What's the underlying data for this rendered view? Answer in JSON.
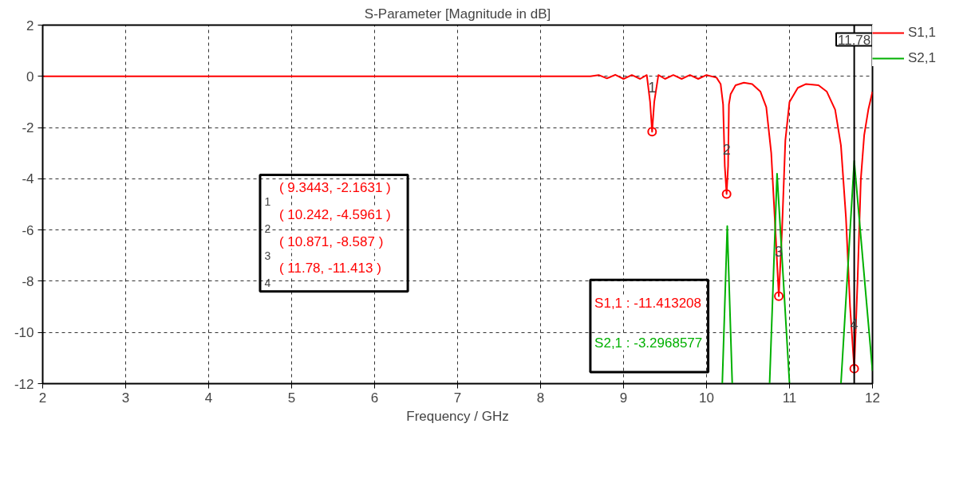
{
  "chart_data": {
    "type": "line",
    "title": "S-Parameter [Magnitude in dB]",
    "xlabel": "Frequency / GHz",
    "xlim": [
      2,
      12
    ],
    "ylim": [
      -12,
      2
    ],
    "xticks": [
      2,
      3,
      4,
      5,
      6,
      7,
      8,
      9,
      10,
      11,
      12
    ],
    "yticks": [
      2,
      0,
      -2,
      -4,
      -6,
      -8,
      -10,
      -12
    ],
    "grid": true,
    "legend": "right",
    "line_style": "solid",
    "marker": "none",
    "series": [
      {
        "name": "S1,1",
        "color": "#ff0000",
        "x": [
          2,
          8.6,
          8.7,
          8.8,
          8.9,
          9.0,
          9.1,
          9.2,
          9.28,
          9.32,
          9.3443,
          9.37,
          9.42,
          9.5,
          9.6,
          9.7,
          9.8,
          9.9,
          10.0,
          10.12,
          10.17,
          10.2,
          10.22,
          10.242,
          10.26,
          10.27,
          10.29,
          10.35,
          10.45,
          10.55,
          10.65,
          10.72,
          10.78,
          10.83,
          10.871,
          10.91,
          10.95,
          11.0,
          11.1,
          11.2,
          11.35,
          11.45,
          11.55,
          11.62,
          11.68,
          11.73,
          11.78,
          11.82,
          11.86,
          11.9,
          11.95,
          12
        ],
        "values": [
          0,
          0,
          0.05,
          -0.08,
          0.06,
          -0.1,
          0.05,
          -0.1,
          0.05,
          -1.0,
          -2.1631,
          -1.0,
          0.05,
          -0.1,
          0.05,
          -0.1,
          0.05,
          -0.1,
          0.05,
          -0.05,
          -0.3,
          -1.1,
          -3.5,
          -4.5961,
          -3.5,
          -1.1,
          -0.7,
          -0.35,
          -0.25,
          -0.3,
          -0.6,
          -1.2,
          -3.0,
          -6.0,
          -8.587,
          -6.0,
          -2.5,
          -1.0,
          -0.45,
          -0.3,
          -0.35,
          -0.6,
          -1.3,
          -2.7,
          -5.5,
          -9.0,
          -11.413,
          -8.0,
          -4.0,
          -2.3,
          -1.3,
          -0.6
        ]
      },
      {
        "name": "S2,1",
        "color": "#00b000",
        "x": [
          10.19,
          10.25,
          10.31,
          10.5,
          10.76,
          10.85,
          11.0,
          11.3,
          11.62,
          11.78,
          12
        ],
        "values": [
          -12,
          -5.85,
          -12,
          null,
          -12,
          -3.8,
          -12,
          null,
          -12,
          -3.3,
          -11.5
        ]
      }
    ],
    "ref_lines": [
      {
        "axis": "x",
        "value": 11.78,
        "label": "11.78",
        "color": "#000000"
      }
    ],
    "annotations": [
      {
        "text": "1",
        "x": 9.3443,
        "y": -2.1631
      },
      {
        "text": "2",
        "x": 10.242,
        "y": -4.5961
      },
      {
        "text": "3",
        "x": 10.871,
        "y": -8.587
      },
      {
        "text": "4",
        "x": 11.78,
        "y": -11.413
      },
      "( 9.3443, -2.1631 )",
      "( 10.242, -4.5961 )",
      "( 10.871, -8.587 )",
      "( 11.78, -11.413 )",
      "S1,1 : -11.413208",
      "S2,1 : -3.2968577"
    ]
  }
}
